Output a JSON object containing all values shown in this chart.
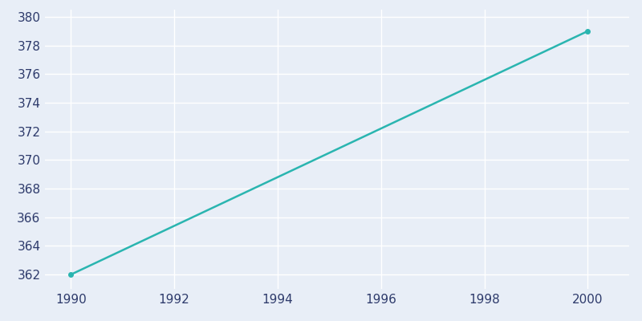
{
  "x": [
    1990,
    2000
  ],
  "y": [
    362,
    379
  ],
  "line_color": "#2ab5b0",
  "marker_color": "#2ab5b0",
  "marker_size": 4,
  "line_width": 1.8,
  "axes_facecolor": "#e8eef7",
  "figure_facecolor": "#e8eef7",
  "grid_color": "#ffffff",
  "tick_color": "#2d3a6b",
  "label_color": "#2d3a6b",
  "xlim": [
    1989.5,
    2000.8
  ],
  "ylim": [
    361.0,
    380.5
  ],
  "xticks": [
    1990,
    1992,
    1994,
    1996,
    1998,
    2000
  ],
  "yticks": [
    362,
    364,
    366,
    368,
    370,
    372,
    374,
    376,
    378,
    380
  ],
  "tick_fontsize": 11
}
